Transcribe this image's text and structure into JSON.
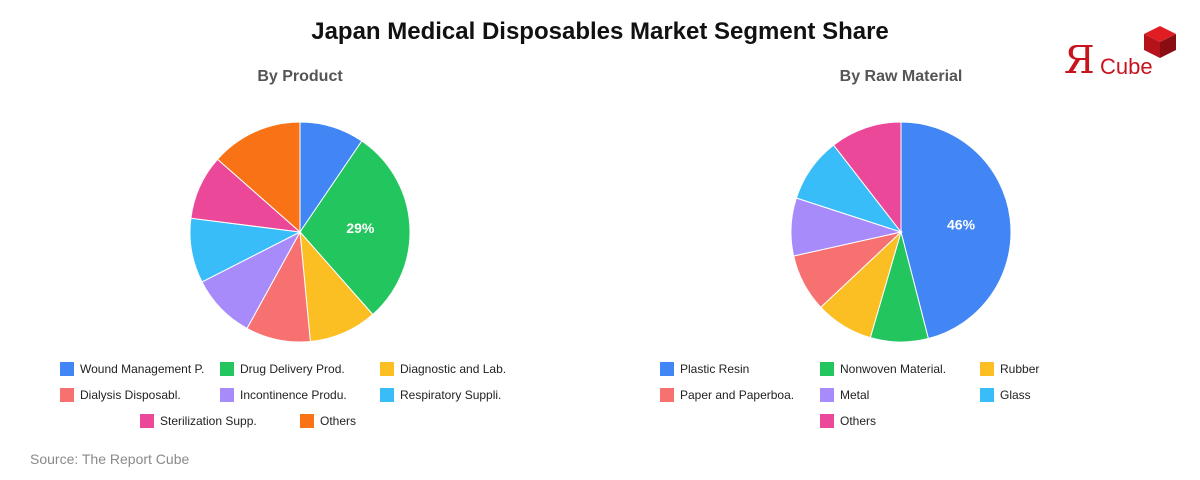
{
  "title": "Japan Medical Disposables Market Segment Share",
  "source": "Source: The Report Cube",
  "logo": {
    "text": "Я",
    "sub": "Cube",
    "color": "#c8141e"
  },
  "chart_data": [
    {
      "type": "pie",
      "title": "By Product",
      "label_format": "percent",
      "labeled_slices": [
        "Drug Delivery Prod."
      ],
      "categories": [
        "Wound Management P.",
        "Drug Delivery Prod.",
        "Diagnostic and Lab.",
        "Dialysis Disposabl.",
        "Incontinence Produ.",
        "Respiratory Suppli.",
        "Sterilization Supp.",
        "Others"
      ],
      "values": [
        9.5,
        29,
        10,
        9.5,
        9.5,
        9.5,
        9.5,
        13.5
      ],
      "order": [
        0,
        1,
        2,
        3,
        4,
        5,
        6,
        7
      ],
      "colors": [
        "#4285f4",
        "#22c55e",
        "#fbbf24",
        "#f87171",
        "#a78bfa",
        "#38bdf8",
        "#ec4899",
        "#f97316"
      ],
      "legend_placement": "bottom"
    },
    {
      "type": "pie",
      "title": "By Raw Material",
      "label_format": "percent",
      "labeled_slices": [
        "Plastic Resin"
      ],
      "categories": [
        "Plastic Resin",
        "Nonwoven Material.",
        "Rubber",
        "Paper and Paperboa.",
        "Metal",
        "Glass",
        "Others"
      ],
      "values": [
        46,
        8.5,
        8.5,
        8.5,
        8.5,
        9.5,
        10.5
      ],
      "order": [
        0,
        1,
        2,
        3,
        4,
        5,
        6
      ],
      "colors": [
        "#4285f4",
        "#22c55e",
        "#fbbf24",
        "#f87171",
        "#a78bfa",
        "#38bdf8",
        "#ec4899"
      ],
      "legend_placement": "bottom"
    }
  ]
}
